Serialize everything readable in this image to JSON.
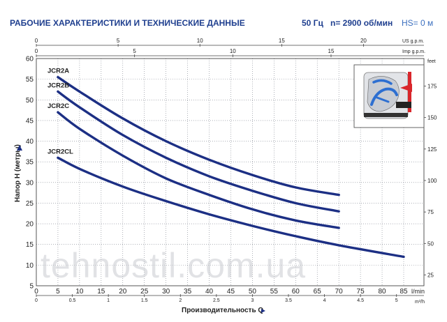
{
  "header": {
    "title": "РАБОЧИЕ ХАРАКТЕРИСТИКИ И ТЕХНИЧЕСКИЕ ДАННЫЕ",
    "freq": "50 Гц",
    "speed": "n= 2900 об/мин",
    "hs": "HS= 0 м"
  },
  "watermark": "tehnostil.com.ua",
  "colors": {
    "curve": "#1c2f84",
    "title": "#1f3f8f",
    "accent": "#3b6fbf"
  },
  "icons": {
    "pump_section": "pump-cross-section-icon",
    "arrow": "triangle-arrow-icon"
  },
  "chart_data": {
    "type": "line",
    "xlabel": "Производительность Q",
    "ylabel": "Напор Н (метры)",
    "x_unit": "l/min",
    "y_unit_right": "feet",
    "xlim": [
      0,
      90
    ],
    "ylim": [
      5,
      60
    ],
    "x_ticks": [
      0,
      5,
      10,
      15,
      20,
      25,
      30,
      35,
      40,
      45,
      50,
      55,
      60,
      65,
      70,
      75,
      80,
      85
    ],
    "y_ticks": [
      5,
      10,
      15,
      20,
      25,
      30,
      35,
      40,
      45,
      50,
      55,
      60
    ],
    "secondary_axes": {
      "us_gpm": {
        "label": "US g.p.m.",
        "ticks": [
          0,
          5,
          10,
          15,
          20
        ]
      },
      "imp_gpm": {
        "label": "Imp g.p.m.",
        "ticks": [
          0,
          5,
          10,
          15
        ]
      },
      "m3h": {
        "label": "m³/h",
        "ticks": [
          "0",
          "0.5",
          "1",
          "1.5",
          "2",
          "2.5",
          "3",
          "3.5",
          "4",
          "4.5",
          "5"
        ]
      },
      "feet": {
        "label": "feet",
        "ticks": [
          25,
          50,
          75,
          100,
          125,
          150,
          175
        ]
      }
    },
    "grid": true,
    "legend": "labels at curve start",
    "series": [
      {
        "name": "JCR2A",
        "x": [
          5,
          10,
          20,
          30,
          40,
          50,
          60,
          70
        ],
        "y": [
          55.5,
          52,
          45.5,
          40,
          35.5,
          31.8,
          28.8,
          27
        ]
      },
      {
        "name": "JCR2B",
        "x": [
          5,
          10,
          20,
          30,
          40,
          50,
          60,
          70
        ],
        "y": [
          52,
          48.2,
          41.5,
          36,
          31.5,
          28,
          25,
          23
        ]
      },
      {
        "name": "JCR2C",
        "x": [
          5,
          10,
          20,
          30,
          40,
          50,
          60,
          70
        ],
        "y": [
          47,
          43,
          36.5,
          31,
          27,
          23.5,
          20.8,
          19
        ]
      },
      {
        "name": "JCR2CL",
        "x": [
          5,
          10,
          20,
          30,
          40,
          50,
          60,
          70,
          85
        ],
        "y": [
          36,
          33.3,
          29,
          25.5,
          22.3,
          19.5,
          17,
          14.8,
          12
        ]
      }
    ]
  }
}
